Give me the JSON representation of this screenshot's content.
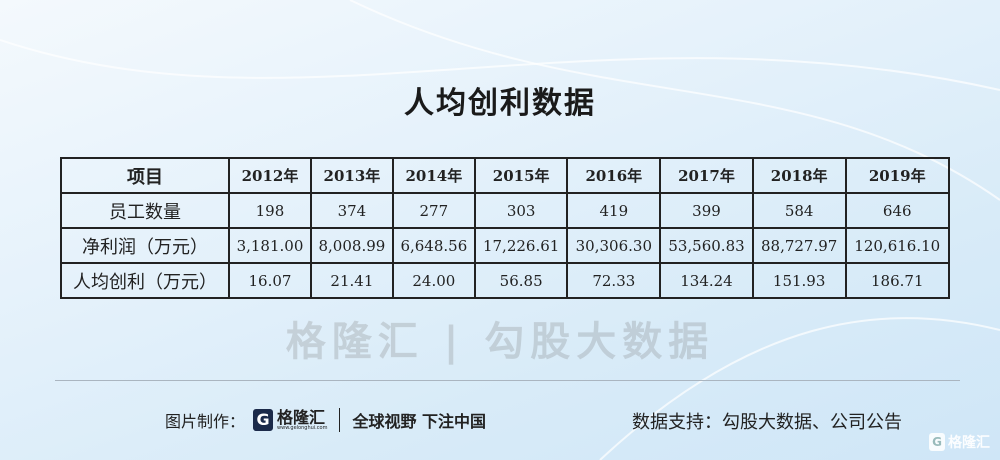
{
  "title": "人均创利数据",
  "table": {
    "headers": [
      "项目",
      "2012年",
      "2013年",
      "2014年",
      "2015年",
      "2016年",
      "2017年",
      "2018年",
      "2019年"
    ],
    "rows": [
      {
        "label": "员工数量",
        "values": [
          "198",
          "374",
          "277",
          "303",
          "419",
          "399",
          "584",
          "646"
        ]
      },
      {
        "label": "净利润（万元）",
        "values": [
          "3,181.00",
          "8,008.99",
          "6,648.56",
          "17,226.61",
          "30,306.30",
          "53,560.83",
          "88,727.97",
          "120,616.10"
        ]
      },
      {
        "label": "人均创利（万元）",
        "values": [
          "16.07",
          "21.41",
          "24.00",
          "56.85",
          "72.33",
          "134.24",
          "151.93",
          "186.71"
        ]
      }
    ]
  },
  "watermark": "格隆汇 | 勾股大数据",
  "footer": {
    "made_by_label": "图片制作：",
    "logo_text": "格隆汇",
    "logo_url": "www.gelonghui.com",
    "slogan": "全球视野 下注中国",
    "source": "数据支持：勾股大数据、公司公告"
  },
  "corner_logo": "格隆汇"
}
